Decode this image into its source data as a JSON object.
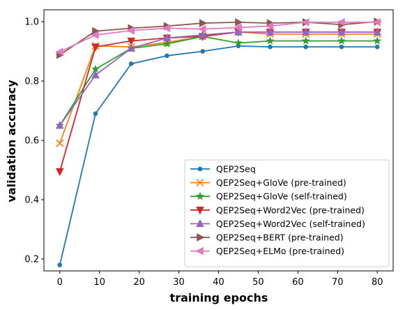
{
  "chart_data": {
    "type": "line",
    "title": "",
    "xlabel": "training epochs",
    "ylabel": "validation accuracy",
    "xlim": [
      -4,
      84
    ],
    "ylim": [
      0.16,
      1.04
    ],
    "xticks": [
      0,
      10,
      20,
      30,
      40,
      50,
      60,
      70,
      80
    ],
    "yticks": [
      0.2,
      0.4,
      0.6,
      0.8,
      1.0
    ],
    "ytick_labels": [
      "0.2",
      "0.4",
      "0.6",
      "0.8",
      "1.0"
    ],
    "grid": false,
    "legend": "lower-right",
    "x": [
      0,
      9,
      18,
      27,
      36,
      45,
      53,
      62,
      71,
      80
    ],
    "series": [
      {
        "name": "QEP2Seq",
        "color": "#1f77b4",
        "marker": "circle",
        "values": [
          0.18,
          0.69,
          0.858,
          0.885,
          0.9,
          0.918,
          0.915,
          0.915,
          0.915,
          0.915
        ]
      },
      {
        "name": "QEP2Seq+GloVe (pre-trained)",
        "color": "#ff7f0e",
        "marker": "x",
        "values": [
          0.59,
          0.918,
          0.915,
          0.93,
          0.95,
          0.965,
          0.958,
          0.958,
          0.958,
          0.958
        ]
      },
      {
        "name": "QEP2Seq+GloVe (self-trained)",
        "color": "#2ca02c",
        "marker": "star",
        "values": [
          0.65,
          0.84,
          0.91,
          0.925,
          0.95,
          0.928,
          0.935,
          0.935,
          0.935,
          0.935
        ]
      },
      {
        "name": "QEP2Seq+Word2Vec (pre-trained)",
        "color": "#d62728",
        "marker": "triangle-down",
        "values": [
          0.495,
          0.915,
          0.935,
          0.945,
          0.95,
          0.965,
          0.965,
          0.965,
          0.965,
          0.965
        ]
      },
      {
        "name": "QEP2Seq+Word2Vec (self-trained)",
        "color": "#9467bd",
        "marker": "triangle-up",
        "values": [
          0.65,
          0.82,
          0.91,
          0.945,
          0.955,
          0.965,
          0.965,
          0.965,
          0.965,
          0.965
        ]
      },
      {
        "name": "QEP2Seq+BERT (pre-trained)",
        "color": "#8c564b",
        "marker": "triangle-right",
        "values": [
          0.888,
          0.968,
          0.978,
          0.985,
          0.995,
          0.998,
          0.995,
          0.998,
          0.99,
          1.0
        ]
      },
      {
        "name": "QEP2Seq+ELMo (pre-trained)",
        "color": "#e377c2",
        "marker": "triangle-left",
        "values": [
          0.898,
          0.955,
          0.97,
          0.978,
          0.975,
          0.98,
          0.985,
          0.998,
          0.998,
          0.998
        ]
      }
    ]
  }
}
